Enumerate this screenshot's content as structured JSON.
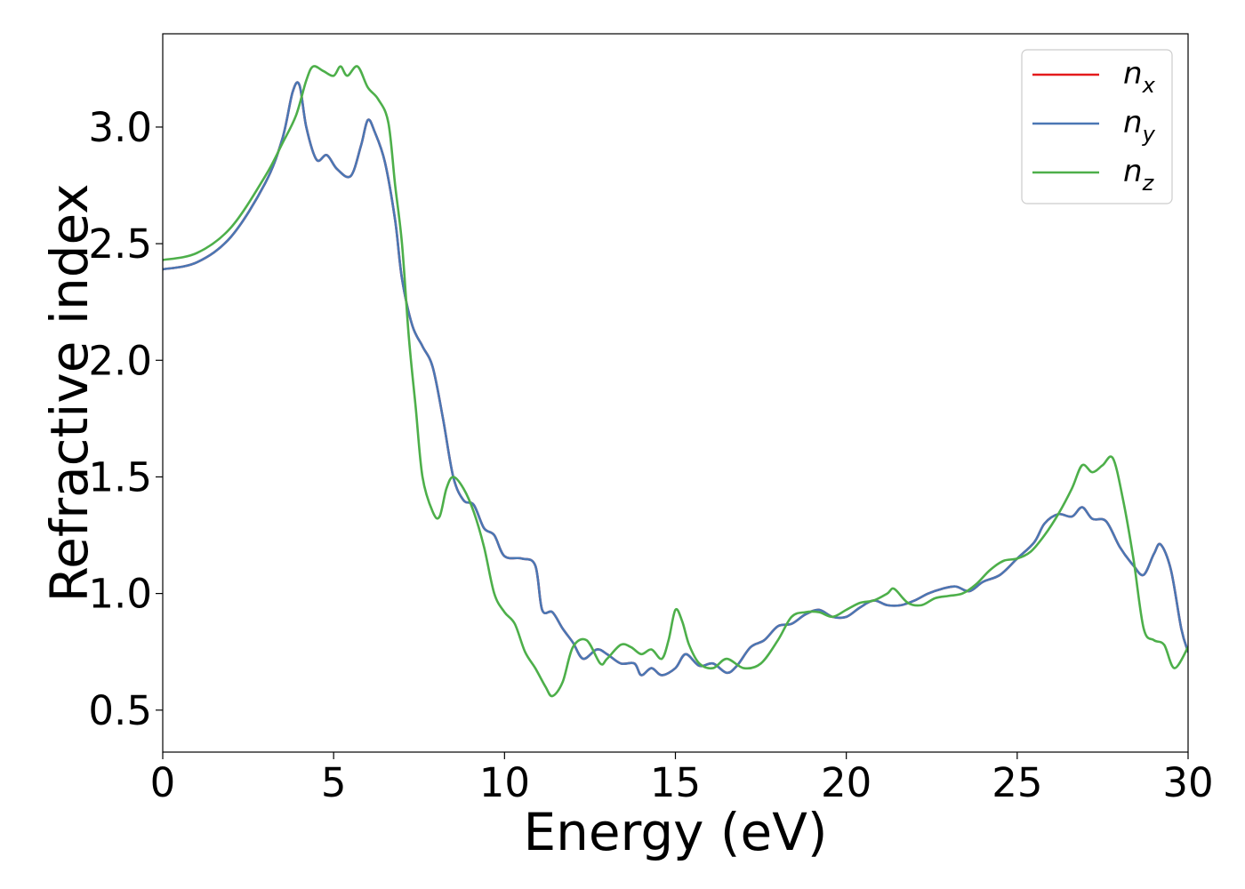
{
  "chart_data": {
    "type": "line",
    "title": "",
    "xlabel": "Energy (eV)",
    "ylabel": "Refractive index",
    "xlim": [
      0,
      30
    ],
    "ylim": [
      0.32,
      3.4
    ],
    "xticks": [
      0,
      5,
      10,
      15,
      20,
      25,
      30
    ],
    "yticks": [
      0.5,
      1.0,
      1.5,
      2.0,
      2.5,
      3.0
    ],
    "xtick_labels": [
      "0",
      "5",
      "10",
      "15",
      "20",
      "25",
      "30"
    ],
    "ytick_labels": [
      "0.5",
      "1.0",
      "1.5",
      "2.0",
      "2.5",
      "3.0"
    ],
    "grid": false,
    "legend_position": "top-right",
    "series": [
      {
        "name": "n_x",
        "legend_base": "n",
        "legend_sub": "x",
        "color": "#e41a1c",
        "points": [
          [
            0,
            2.39
          ],
          [
            1,
            2.42
          ],
          [
            2,
            2.53
          ],
          [
            3,
            2.76
          ],
          [
            3.5,
            2.95
          ],
          [
            3.8,
            3.15
          ],
          [
            4.0,
            3.18
          ],
          [
            4.2,
            3.0
          ],
          [
            4.5,
            2.86
          ],
          [
            4.8,
            2.88
          ],
          [
            5.1,
            2.82
          ],
          [
            5.5,
            2.79
          ],
          [
            5.8,
            2.92
          ],
          [
            6.0,
            3.03
          ],
          [
            6.2,
            2.98
          ],
          [
            6.5,
            2.85
          ],
          [
            6.8,
            2.6
          ],
          [
            7.0,
            2.35
          ],
          [
            7.3,
            2.15
          ],
          [
            7.6,
            2.06
          ],
          [
            7.9,
            1.97
          ],
          [
            8.2,
            1.75
          ],
          [
            8.5,
            1.5
          ],
          [
            8.8,
            1.4
          ],
          [
            9.1,
            1.38
          ],
          [
            9.4,
            1.28
          ],
          [
            9.7,
            1.25
          ],
          [
            10.0,
            1.16
          ],
          [
            10.5,
            1.15
          ],
          [
            10.9,
            1.12
          ],
          [
            11.1,
            0.93
          ],
          [
            11.4,
            0.92
          ],
          [
            11.7,
            0.85
          ],
          [
            12.0,
            0.79
          ],
          [
            12.3,
            0.72
          ],
          [
            12.7,
            0.76
          ],
          [
            13.0,
            0.74
          ],
          [
            13.4,
            0.7
          ],
          [
            13.8,
            0.7
          ],
          [
            14.0,
            0.65
          ],
          [
            14.3,
            0.68
          ],
          [
            14.6,
            0.65
          ],
          [
            15.0,
            0.68
          ],
          [
            15.3,
            0.74
          ],
          [
            15.7,
            0.69
          ],
          [
            16.1,
            0.7
          ],
          [
            16.5,
            0.66
          ],
          [
            16.8,
            0.69
          ],
          [
            17.2,
            0.77
          ],
          [
            17.6,
            0.8
          ],
          [
            18.0,
            0.86
          ],
          [
            18.4,
            0.87
          ],
          [
            18.8,
            0.91
          ],
          [
            19.2,
            0.93
          ],
          [
            19.6,
            0.9
          ],
          [
            20.0,
            0.9
          ],
          [
            20.4,
            0.94
          ],
          [
            20.8,
            0.97
          ],
          [
            21.2,
            0.95
          ],
          [
            21.6,
            0.95
          ],
          [
            22.0,
            0.97
          ],
          [
            22.4,
            1.0
          ],
          [
            22.8,
            1.02
          ],
          [
            23.2,
            1.03
          ],
          [
            23.6,
            1.01
          ],
          [
            24.0,
            1.05
          ],
          [
            24.5,
            1.08
          ],
          [
            25.0,
            1.15
          ],
          [
            25.5,
            1.22
          ],
          [
            25.8,
            1.3
          ],
          [
            26.2,
            1.34
          ],
          [
            26.6,
            1.33
          ],
          [
            26.9,
            1.37
          ],
          [
            27.2,
            1.32
          ],
          [
            27.6,
            1.31
          ],
          [
            28.0,
            1.2
          ],
          [
            28.4,
            1.12
          ],
          [
            28.7,
            1.08
          ],
          [
            29.0,
            1.17
          ],
          [
            29.2,
            1.21
          ],
          [
            29.5,
            1.1
          ],
          [
            29.8,
            0.85
          ],
          [
            30,
            0.75
          ]
        ]
      },
      {
        "name": "n_y",
        "legend_base": "n",
        "legend_sub": "y",
        "color": "#4a77b4",
        "points": [
          [
            0,
            2.39
          ],
          [
            1,
            2.42
          ],
          [
            2,
            2.53
          ],
          [
            3,
            2.76
          ],
          [
            3.5,
            2.95
          ],
          [
            3.8,
            3.15
          ],
          [
            4.0,
            3.18
          ],
          [
            4.2,
            3.0
          ],
          [
            4.5,
            2.86
          ],
          [
            4.8,
            2.88
          ],
          [
            5.1,
            2.82
          ],
          [
            5.5,
            2.79
          ],
          [
            5.8,
            2.92
          ],
          [
            6.0,
            3.03
          ],
          [
            6.2,
            2.98
          ],
          [
            6.5,
            2.85
          ],
          [
            6.8,
            2.6
          ],
          [
            7.0,
            2.35
          ],
          [
            7.3,
            2.15
          ],
          [
            7.6,
            2.06
          ],
          [
            7.9,
            1.97
          ],
          [
            8.2,
            1.75
          ],
          [
            8.5,
            1.5
          ],
          [
            8.8,
            1.4
          ],
          [
            9.1,
            1.38
          ],
          [
            9.4,
            1.28
          ],
          [
            9.7,
            1.25
          ],
          [
            10.0,
            1.16
          ],
          [
            10.5,
            1.15
          ],
          [
            10.9,
            1.12
          ],
          [
            11.1,
            0.93
          ],
          [
            11.4,
            0.92
          ],
          [
            11.7,
            0.85
          ],
          [
            12.0,
            0.79
          ],
          [
            12.3,
            0.72
          ],
          [
            12.7,
            0.76
          ],
          [
            13.0,
            0.74
          ],
          [
            13.4,
            0.7
          ],
          [
            13.8,
            0.7
          ],
          [
            14.0,
            0.65
          ],
          [
            14.3,
            0.68
          ],
          [
            14.6,
            0.65
          ],
          [
            15.0,
            0.68
          ],
          [
            15.3,
            0.74
          ],
          [
            15.7,
            0.69
          ],
          [
            16.1,
            0.7
          ],
          [
            16.5,
            0.66
          ],
          [
            16.8,
            0.69
          ],
          [
            17.2,
            0.77
          ],
          [
            17.6,
            0.8
          ],
          [
            18.0,
            0.86
          ],
          [
            18.4,
            0.87
          ],
          [
            18.8,
            0.91
          ],
          [
            19.2,
            0.93
          ],
          [
            19.6,
            0.9
          ],
          [
            20.0,
            0.9
          ],
          [
            20.4,
            0.94
          ],
          [
            20.8,
            0.97
          ],
          [
            21.2,
            0.95
          ],
          [
            21.6,
            0.95
          ],
          [
            22.0,
            0.97
          ],
          [
            22.4,
            1.0
          ],
          [
            22.8,
            1.02
          ],
          [
            23.2,
            1.03
          ],
          [
            23.6,
            1.01
          ],
          [
            24.0,
            1.05
          ],
          [
            24.5,
            1.08
          ],
          [
            25.0,
            1.15
          ],
          [
            25.5,
            1.22
          ],
          [
            25.8,
            1.3
          ],
          [
            26.2,
            1.34
          ],
          [
            26.6,
            1.33
          ],
          [
            26.9,
            1.37
          ],
          [
            27.2,
            1.32
          ],
          [
            27.6,
            1.31
          ],
          [
            28.0,
            1.2
          ],
          [
            28.4,
            1.12
          ],
          [
            28.7,
            1.08
          ],
          [
            29.0,
            1.17
          ],
          [
            29.2,
            1.21
          ],
          [
            29.5,
            1.1
          ],
          [
            29.8,
            0.85
          ],
          [
            30,
            0.75
          ]
        ]
      },
      {
        "name": "n_z",
        "legend_base": "n",
        "legend_sub": "z",
        "color": "#4daf4a",
        "points": [
          [
            0,
            2.43
          ],
          [
            1,
            2.46
          ],
          [
            2,
            2.57
          ],
          [
            3,
            2.79
          ],
          [
            3.5,
            2.93
          ],
          [
            3.9,
            3.05
          ],
          [
            4.2,
            3.2
          ],
          [
            4.4,
            3.26
          ],
          [
            4.7,
            3.24
          ],
          [
            5.0,
            3.22
          ],
          [
            5.2,
            3.26
          ],
          [
            5.4,
            3.22
          ],
          [
            5.7,
            3.26
          ],
          [
            6.0,
            3.17
          ],
          [
            6.3,
            3.12
          ],
          [
            6.6,
            3.02
          ],
          [
            6.8,
            2.75
          ],
          [
            7.0,
            2.5
          ],
          [
            7.2,
            2.1
          ],
          [
            7.4,
            1.8
          ],
          [
            7.6,
            1.5
          ],
          [
            7.9,
            1.35
          ],
          [
            8.1,
            1.33
          ],
          [
            8.3,
            1.45
          ],
          [
            8.5,
            1.5
          ],
          [
            8.8,
            1.45
          ],
          [
            9.1,
            1.35
          ],
          [
            9.4,
            1.2
          ],
          [
            9.7,
            1.0
          ],
          [
            10.0,
            0.92
          ],
          [
            10.3,
            0.87
          ],
          [
            10.6,
            0.75
          ],
          [
            10.9,
            0.68
          ],
          [
            11.2,
            0.6
          ],
          [
            11.4,
            0.56
          ],
          [
            11.7,
            0.62
          ],
          [
            12.0,
            0.77
          ],
          [
            12.4,
            0.8
          ],
          [
            12.8,
            0.7
          ],
          [
            13.0,
            0.72
          ],
          [
            13.4,
            0.78
          ],
          [
            13.7,
            0.77
          ],
          [
            14.0,
            0.74
          ],
          [
            14.3,
            0.76
          ],
          [
            14.6,
            0.72
          ],
          [
            14.8,
            0.8
          ],
          [
            15.0,
            0.93
          ],
          [
            15.2,
            0.88
          ],
          [
            15.4,
            0.78
          ],
          [
            15.7,
            0.7
          ],
          [
            16.1,
            0.68
          ],
          [
            16.5,
            0.72
          ],
          [
            17.0,
            0.68
          ],
          [
            17.5,
            0.7
          ],
          [
            18.0,
            0.8
          ],
          [
            18.4,
            0.9
          ],
          [
            18.8,
            0.92
          ],
          [
            19.2,
            0.92
          ],
          [
            19.6,
            0.9
          ],
          [
            20.0,
            0.93
          ],
          [
            20.4,
            0.96
          ],
          [
            20.8,
            0.97
          ],
          [
            21.2,
            1.0
          ],
          [
            21.4,
            1.02
          ],
          [
            21.8,
            0.96
          ],
          [
            22.2,
            0.95
          ],
          [
            22.6,
            0.98
          ],
          [
            23.0,
            0.99
          ],
          [
            23.4,
            1.0
          ],
          [
            23.8,
            1.04
          ],
          [
            24.2,
            1.1
          ],
          [
            24.6,
            1.14
          ],
          [
            25.0,
            1.15
          ],
          [
            25.4,
            1.18
          ],
          [
            25.8,
            1.25
          ],
          [
            26.2,
            1.34
          ],
          [
            26.6,
            1.45
          ],
          [
            26.9,
            1.55
          ],
          [
            27.2,
            1.52
          ],
          [
            27.5,
            1.55
          ],
          [
            27.8,
            1.58
          ],
          [
            28.1,
            1.4
          ],
          [
            28.4,
            1.15
          ],
          [
            28.7,
            0.85
          ],
          [
            29.0,
            0.8
          ],
          [
            29.3,
            0.78
          ],
          [
            29.6,
            0.68
          ],
          [
            30,
            0.77
          ]
        ]
      }
    ]
  }
}
